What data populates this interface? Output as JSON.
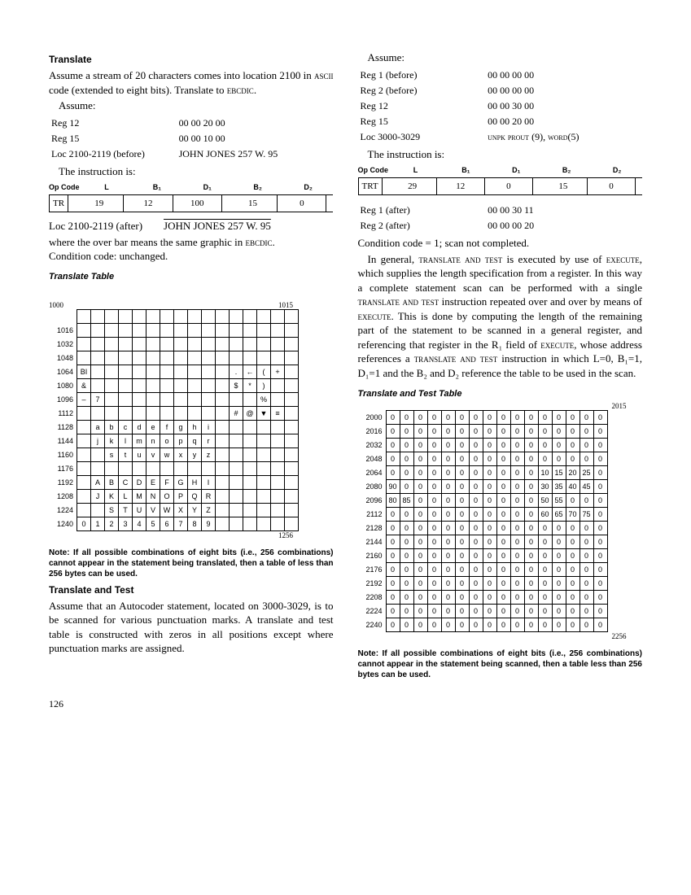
{
  "left": {
    "h1": "Translate",
    "p1a": "Assume a stream of 20 characters comes into location 2100 in ",
    "p1b": " code (extended to eight bits). Translate to ",
    "ascii": "ascii",
    "ebcdic": "ebcdic",
    "assume": "Assume:",
    "regs": [
      [
        "Reg 12",
        "00 00 20 00"
      ],
      [
        "Reg 15",
        "00 00 10 00"
      ],
      [
        "Loc 2100-2119 (before)",
        "JOHN JONES 257 W. 95"
      ]
    ],
    "instrline": "The instruction is:",
    "hdr": [
      "Op Code",
      "L",
      "B₁",
      "D₁",
      "B₂",
      "D₂"
    ],
    "instr": [
      "TR",
      "19",
      "12",
      "100",
      "15",
      "0"
    ],
    "afterLabel": "Loc 2100-2119 (after)",
    "afterVal": "JOHN JONES 257 W. 95",
    "afterNote1": "where the over bar means the same graphic in ",
    "afterNote2": "Condition code: unchanged.",
    "h2": "Translate Table",
    "tableTopLeft": "1000",
    "tableTopRight": "1015",
    "tableBottomRight": "1256",
    "rowlabels": [
      "1016",
      "1032",
      "1048",
      "1064",
      "1080",
      "1096",
      "1112",
      "1128",
      "1144",
      "1160",
      "1176",
      "1192",
      "1208",
      "1224",
      "1240"
    ],
    "rows": [
      [
        "",
        "",
        "",
        "",
        "",
        "",
        "",
        "",
        "",
        "",
        "",
        "",
        "",
        "",
        "",
        ""
      ],
      [
        "",
        "",
        "",
        "",
        "",
        "",
        "",
        "",
        "",
        "",
        "",
        "",
        "",
        "",
        "",
        ""
      ],
      [
        "",
        "",
        "",
        "",
        "",
        "",
        "",
        "",
        "",
        "",
        "",
        "",
        "",
        "",
        "",
        ""
      ],
      [
        "BI",
        "",
        "",
        "",
        "",
        "",
        "",
        "",
        "",
        "",
        "",
        ".",
        "←",
        "(",
        "+",
        ""
      ],
      [
        "&",
        "",
        "",
        "",
        "",
        "",
        "",
        "",
        "",
        "",
        "",
        "$",
        "*",
        ")",
        "",
        ""
      ],
      [
        "–",
        "7",
        "",
        "",
        "",
        "",
        "",
        "",
        "",
        "",
        "",
        "",
        "",
        "%",
        "",
        ""
      ],
      [
        "",
        "",
        "",
        "",
        "",
        "",
        "",
        "",
        "",
        "",
        "",
        "#",
        "@",
        "▼",
        "≡",
        ""
      ],
      [
        "",
        "a",
        "b",
        "c",
        "d",
        "e",
        "f",
        "g",
        "h",
        "i",
        "",
        "",
        "",
        "",
        "",
        ""
      ],
      [
        "",
        "j",
        "k",
        "l",
        "m",
        "n",
        "o",
        "p",
        "q",
        "r",
        "",
        "",
        "",
        "",
        "",
        ""
      ],
      [
        "",
        "",
        "s",
        "t",
        "u",
        "v",
        "w",
        "x",
        "y",
        "z",
        "",
        "",
        "",
        "",
        "",
        ""
      ],
      [
        "",
        "",
        "",
        "",
        "",
        "",
        "",
        "",
        "",
        "",
        "",
        "",
        "",
        "",
        "",
        ""
      ],
      [
        "",
        "A",
        "B",
        "C",
        "D",
        "E",
        "F",
        "G",
        "H",
        "I",
        "",
        "",
        "",
        "",
        "",
        ""
      ],
      [
        "",
        "J",
        "K",
        "L",
        "M",
        "N",
        "O",
        "P",
        "Q",
        "R",
        "",
        "",
        "",
        "",
        "",
        ""
      ],
      [
        "",
        "",
        "S",
        "T",
        "U",
        "V",
        "W",
        "X",
        "Y",
        "Z",
        "",
        "",
        "",
        "",
        "",
        ""
      ],
      [
        "0",
        "1",
        "2",
        "3",
        "4",
        "5",
        "6",
        "7",
        "8",
        "9",
        "",
        "",
        "",
        "",
        "",
        ""
      ]
    ],
    "note": "Note: If all possible combinations of eight bits (i.e., 256 combinations) cannot appear in the statement being translated, then a table of less than 256 bytes can be used.",
    "h3": "Translate and Test",
    "p3": "Assume that an Autocoder statement, located on 3000-3029, is to be scanned for various punctuation marks. A translate and test table is constructed with zeros in all positions except where punctuation marks are assigned."
  },
  "right": {
    "assume": "Assume:",
    "regs": [
      [
        "Reg 1 (before)",
        "00 00 00 00"
      ],
      [
        "Reg 2 (before)",
        "00 00 00 00"
      ],
      [
        "Reg 12",
        "00 00 30 00"
      ],
      [
        "Reg 15",
        "00 00 20 00"
      ],
      [
        "Loc 3000-3029",
        "unpk prout (9), word(5)"
      ]
    ],
    "instrline": "The instruction is:",
    "hdr": [
      "Op Code",
      "L",
      "B₁",
      "D₁",
      "B₂",
      "D₂"
    ],
    "instr": [
      "TRT",
      "29",
      "12",
      "0",
      "15",
      "0"
    ],
    "after": [
      [
        "Reg 1 (after)",
        "00 00 30 11"
      ],
      [
        "Reg 2 (after)",
        "00 00 00 20"
      ]
    ],
    "cc": "Condition code = 1; scan not completed.",
    "para1a": "In general, ",
    "trt": "translate and test",
    "para1b": " is executed by use of ",
    "exec": "execute",
    "para1c": ", which supplies the length specification from a register. In this way a complete statement scan can be performed with a single ",
    "para1d": " instruction repeated over and over by means of ",
    "para1e": ". This is done by computing the length of the remaining part of the statement to be scanned in a general register, and referencing that register in the R₁ field of ",
    "para1f": ", whose address references a ",
    "para1g": " instruction in which L=0, B₁=1, D₁=1 and the B₂ and D₂ reference the table to be used in the scan.",
    "h2": "Translate and Test Table",
    "tableTopRight": "2015",
    "tableBottomRight": "2256",
    "rowlabels": [
      "2000",
      "2016",
      "2032",
      "2048",
      "2064",
      "2080",
      "2096",
      "2112",
      "2128",
      "2144",
      "2160",
      "2176",
      "2192",
      "2208",
      "2224",
      "2240"
    ],
    "rows": [
      [
        "0",
        "0",
        "0",
        "0",
        "0",
        "0",
        "0",
        "0",
        "0",
        "0",
        "0",
        "0",
        "0",
        "0",
        "0",
        "0"
      ],
      [
        "0",
        "0",
        "0",
        "0",
        "0",
        "0",
        "0",
        "0",
        "0",
        "0",
        "0",
        "0",
        "0",
        "0",
        "0",
        "0"
      ],
      [
        "0",
        "0",
        "0",
        "0",
        "0",
        "0",
        "0",
        "0",
        "0",
        "0",
        "0",
        "0",
        "0",
        "0",
        "0",
        "0"
      ],
      [
        "0",
        "0",
        "0",
        "0",
        "0",
        "0",
        "0",
        "0",
        "0",
        "0",
        "0",
        "0",
        "0",
        "0",
        "0",
        "0"
      ],
      [
        "0",
        "0",
        "0",
        "0",
        "0",
        "0",
        "0",
        "0",
        "0",
        "0",
        "0",
        "10",
        "15",
        "20",
        "25",
        "0"
      ],
      [
        "90",
        "0",
        "0",
        "0",
        "0",
        "0",
        "0",
        "0",
        "0",
        "0",
        "0",
        "30",
        "35",
        "40",
        "45",
        "0"
      ],
      [
        "80",
        "85",
        "0",
        "0",
        "0",
        "0",
        "0",
        "0",
        "0",
        "0",
        "0",
        "50",
        "55",
        "0",
        "0",
        "0"
      ],
      [
        "0",
        "0",
        "0",
        "0",
        "0",
        "0",
        "0",
        "0",
        "0",
        "0",
        "0",
        "60",
        "65",
        "70",
        "75",
        "0"
      ],
      [
        "0",
        "0",
        "0",
        "0",
        "0",
        "0",
        "0",
        "0",
        "0",
        "0",
        "0",
        "0",
        "0",
        "0",
        "0",
        "0"
      ],
      [
        "0",
        "0",
        "0",
        "0",
        "0",
        "0",
        "0",
        "0",
        "0",
        "0",
        "0",
        "0",
        "0",
        "0",
        "0",
        "0"
      ],
      [
        "0",
        "0",
        "0",
        "0",
        "0",
        "0",
        "0",
        "0",
        "0",
        "0",
        "0",
        "0",
        "0",
        "0",
        "0",
        "0"
      ],
      [
        "0",
        "0",
        "0",
        "0",
        "0",
        "0",
        "0",
        "0",
        "0",
        "0",
        "0",
        "0",
        "0",
        "0",
        "0",
        "0"
      ],
      [
        "0",
        "0",
        "0",
        "0",
        "0",
        "0",
        "0",
        "0",
        "0",
        "0",
        "0",
        "0",
        "0",
        "0",
        "0",
        "0"
      ],
      [
        "0",
        "0",
        "0",
        "0",
        "0",
        "0",
        "0",
        "0",
        "0",
        "0",
        "0",
        "0",
        "0",
        "0",
        "0",
        "0"
      ],
      [
        "0",
        "0",
        "0",
        "0",
        "0",
        "0",
        "0",
        "0",
        "0",
        "0",
        "0",
        "0",
        "0",
        "0",
        "0",
        "0"
      ],
      [
        "0",
        "0",
        "0",
        "0",
        "0",
        "0",
        "0",
        "0",
        "0",
        "0",
        "0",
        "0",
        "0",
        "0",
        "0",
        "0"
      ]
    ],
    "note": "Note: If all possible combinations of eight bits (i.e., 256 combinations) cannot appear in the statement being scanned, then a table less than 256 bytes can be used."
  },
  "pageno": "126"
}
